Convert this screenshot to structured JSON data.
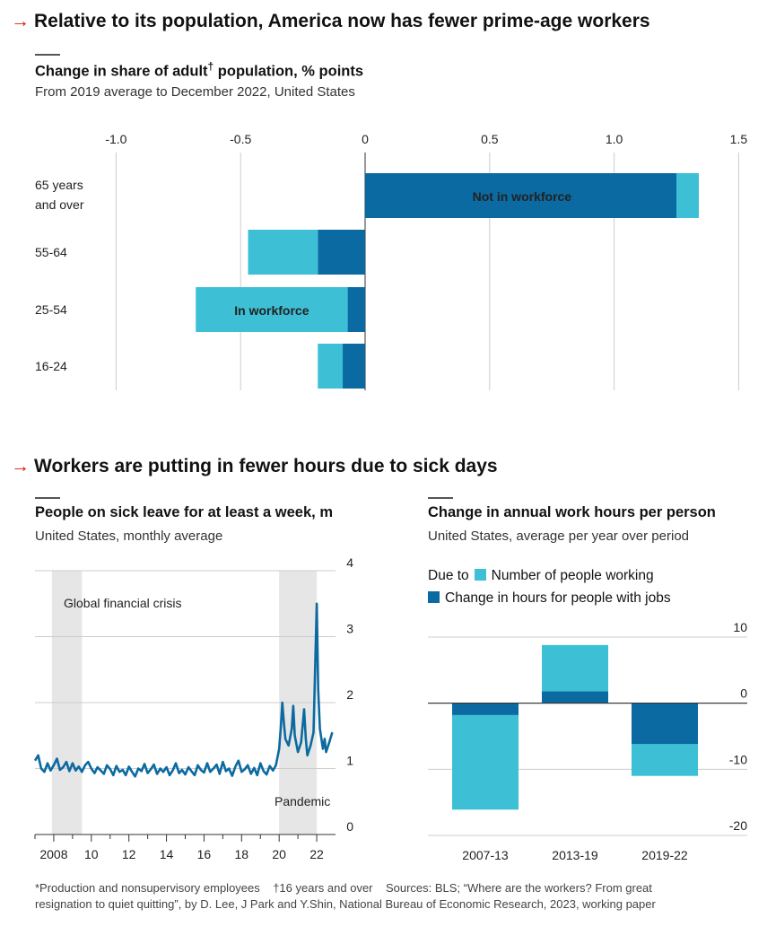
{
  "chart1": {
    "heading": "Relative to its population, America now has fewer prime-age workers",
    "title": "Change in share of adult",
    "title_dagger": "†",
    "title_suffix": " population, % points",
    "subtitle": "From 2019 average to December 2022, United States"
  },
  "chart2": {
    "heading": "Workers are putting in fewer hours due to sick days",
    "title": "People on sick leave for at least a week, m",
    "subtitle": "United States, monthly average"
  },
  "chart3": {
    "title": "Change in annual work hours per person",
    "subtitle": "United States, average per year over period",
    "legend_prefix": "Due to",
    "legend_light": "Number of people working",
    "legend_dark": "Change in hours for people with jobs"
  },
  "footnote": {
    "line1": "*Production and nonsupervisory employees    †16 years and over    Sources: BLS; “Where are the workers? From great",
    "line2": "resignation to quiet quitting”, by D. Lee, J Park and Y.Shin, National Bureau of Economic Research, 2023, working paper"
  },
  "colors": {
    "dark": "#0b6aa1",
    "light": "#3dbfd6",
    "shade": "#e6e6e6",
    "grid": "#cccccc",
    "accent": "#e3120b"
  },
  "chart_data": [
    {
      "type": "bar",
      "orientation": "horizontal",
      "stacked": true,
      "title": "Change in share of adult† population, % points",
      "subtitle": "From 2019 average to December 2022, United States",
      "categories": [
        "65 years and over",
        "55-64",
        "25-54",
        "16-24"
      ],
      "category_lines": [
        [
          "65 years",
          "and over"
        ],
        [
          "55-64"
        ],
        [
          "25-54"
        ],
        [
          "16-24"
        ]
      ],
      "series": [
        {
          "name": "Not in workforce",
          "color": "#0b6aa1",
          "values": [
            1.25,
            -0.19,
            -0.07,
            -0.09
          ]
        },
        {
          "name": "In workforce",
          "color": "#3dbfd6",
          "values": [
            0.09,
            -0.28,
            -0.61,
            -0.1
          ]
        }
      ],
      "xlim": [
        -1.0,
        1.5
      ],
      "xticks": [
        -1.0,
        -0.5,
        0,
        0.5,
        1.0,
        1.5
      ],
      "xtick_labels": [
        "-1.0",
        "-0.5",
        "0",
        "0.5",
        "1.0",
        "1.5"
      ],
      "grid": true
    },
    {
      "type": "line",
      "title": "People on sick leave for at least a week, m",
      "subtitle": "United States, monthly average",
      "x_range": [
        2007.0,
        2023.0
      ],
      "ylim": [
        0,
        4
      ],
      "yticks": [
        0,
        1,
        2,
        3,
        4
      ],
      "xticks": [
        2008,
        2010,
        2012,
        2014,
        2016,
        2018,
        2020,
        2022
      ],
      "xtick_labels": [
        "2008",
        "10",
        "12",
        "14",
        "16",
        "18",
        "20",
        "22"
      ],
      "shaded_periods": [
        {
          "label": "Global financial crisis",
          "start": 2007.9,
          "end": 2009.5
        },
        {
          "label": "Pandemic",
          "start": 2020.0,
          "end": 2022.0
        }
      ],
      "series": [
        {
          "color": "#0b6aa1",
          "points": [
            [
              2007.0,
              1.12
            ],
            [
              2007.17,
              1.2
            ],
            [
              2007.33,
              1.0
            ],
            [
              2007.5,
              0.95
            ],
            [
              2007.67,
              1.08
            ],
            [
              2007.83,
              0.97
            ],
            [
              2008.0,
              1.05
            ],
            [
              2008.17,
              1.15
            ],
            [
              2008.33,
              0.98
            ],
            [
              2008.5,
              1.02
            ],
            [
              2008.67,
              1.1
            ],
            [
              2008.83,
              0.96
            ],
            [
              2009.0,
              1.08
            ],
            [
              2009.17,
              0.97
            ],
            [
              2009.33,
              1.03
            ],
            [
              2009.5,
              0.95
            ],
            [
              2009.67,
              1.05
            ],
            [
              2009.83,
              1.1
            ],
            [
              2010.0,
              1.0
            ],
            [
              2010.17,
              0.93
            ],
            [
              2010.33,
              1.02
            ],
            [
              2010.5,
              0.97
            ],
            [
              2010.67,
              0.92
            ],
            [
              2010.83,
              1.05
            ],
            [
              2011.0,
              0.99
            ],
            [
              2011.17,
              0.9
            ],
            [
              2011.33,
              1.04
            ],
            [
              2011.5,
              0.95
            ],
            [
              2011.67,
              0.98
            ],
            [
              2011.83,
              0.9
            ],
            [
              2012.0,
              1.03
            ],
            [
              2012.17,
              0.95
            ],
            [
              2012.33,
              0.88
            ],
            [
              2012.5,
              1.0
            ],
            [
              2012.67,
              0.96
            ],
            [
              2012.83,
              1.07
            ],
            [
              2013.0,
              0.93
            ],
            [
              2013.17,
              0.99
            ],
            [
              2013.33,
              1.06
            ],
            [
              2013.5,
              0.92
            ],
            [
              2013.67,
              1.0
            ],
            [
              2013.83,
              0.95
            ],
            [
              2014.0,
              1.02
            ],
            [
              2014.17,
              0.9
            ],
            [
              2014.33,
              0.97
            ],
            [
              2014.5,
              1.08
            ],
            [
              2014.67,
              0.93
            ],
            [
              2014.83,
              0.98
            ],
            [
              2015.0,
              0.91
            ],
            [
              2015.17,
              1.02
            ],
            [
              2015.33,
              0.96
            ],
            [
              2015.5,
              0.9
            ],
            [
              2015.67,
              1.05
            ],
            [
              2015.83,
              0.98
            ],
            [
              2016.0,
              0.94
            ],
            [
              2016.17,
              1.08
            ],
            [
              2016.33,
              0.95
            ],
            [
              2016.5,
              1.0
            ],
            [
              2016.67,
              1.06
            ],
            [
              2016.83,
              0.92
            ],
            [
              2017.0,
              1.1
            ],
            [
              2017.17,
              0.96
            ],
            [
              2017.33,
              1.0
            ],
            [
              2017.5,
              0.89
            ],
            [
              2017.67,
              1.03
            ],
            [
              2017.83,
              1.12
            ],
            [
              2018.0,
              0.95
            ],
            [
              2018.17,
              0.99
            ],
            [
              2018.33,
              1.05
            ],
            [
              2018.5,
              0.92
            ],
            [
              2018.67,
              1.01
            ],
            [
              2018.83,
              0.9
            ],
            [
              2019.0,
              1.08
            ],
            [
              2019.17,
              0.96
            ],
            [
              2019.33,
              0.91
            ],
            [
              2019.5,
              1.04
            ],
            [
              2019.67,
              0.97
            ],
            [
              2019.83,
              1.05
            ],
            [
              2020.0,
              1.3
            ],
            [
              2020.08,
              1.6
            ],
            [
              2020.17,
              2.0
            ],
            [
              2020.25,
              1.7
            ],
            [
              2020.33,
              1.45
            ],
            [
              2020.5,
              1.35
            ],
            [
              2020.67,
              1.6
            ],
            [
              2020.75,
              1.95
            ],
            [
              2020.83,
              1.5
            ],
            [
              2021.0,
              1.25
            ],
            [
              2021.17,
              1.4
            ],
            [
              2021.33,
              1.9
            ],
            [
              2021.42,
              1.45
            ],
            [
              2021.5,
              1.2
            ],
            [
              2021.67,
              1.35
            ],
            [
              2021.83,
              1.55
            ],
            [
              2022.0,
              3.5
            ],
            [
              2022.08,
              2.2
            ],
            [
              2022.17,
              1.6
            ],
            [
              2022.33,
              1.3
            ],
            [
              2022.42,
              1.45
            ],
            [
              2022.5,
              1.25
            ],
            [
              2022.67,
              1.4
            ],
            [
              2022.83,
              1.55
            ]
          ]
        }
      ]
    },
    {
      "type": "bar",
      "stacked": true,
      "title": "Change in annual work hours per person",
      "subtitle": "United States, average per year over period",
      "categories": [
        "2007-13",
        "2013-19",
        "2019-22"
      ],
      "series": [
        {
          "name": "Number of people working",
          "color": "#3dbfd6",
          "values": [
            -14.3,
            7.0,
            -4.8
          ]
        },
        {
          "name": "Change in hours for people with jobs",
          "color": "#0b6aa1",
          "values": [
            -1.8,
            1.8,
            -6.2
          ]
        }
      ],
      "ylim": [
        -20,
        10
      ],
      "yticks": [
        -20,
        -10,
        0,
        10
      ],
      "grid": true
    }
  ]
}
